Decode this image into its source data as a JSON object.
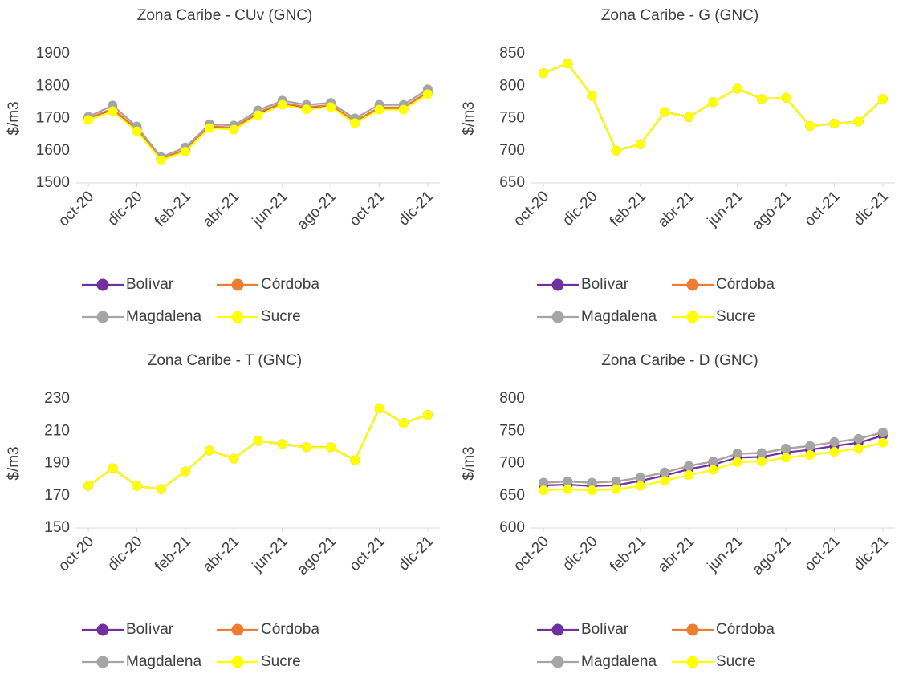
{
  "chart_data": [
    {
      "type": "line",
      "title": "Zona Caribe - CUv (GNC)",
      "y_label": "$/m3",
      "categories": [
        "oct-20",
        null,
        "dic-20",
        null,
        "feb-21",
        null,
        "abr-21",
        null,
        "jun-21",
        null,
        "ago-21",
        null,
        "oct-21",
        null,
        "dic-21"
      ],
      "series": [
        {
          "name": "Bolívar",
          "color": "#7030a0",
          "values": [
            1698,
            1726,
            1664,
            1572,
            1600,
            1673,
            1668,
            1714,
            1745,
            1731,
            1738,
            1688,
            1730,
            1730,
            1778
          ]
        },
        {
          "name": "Córdoba",
          "color": "#ed7d31",
          "values": [
            1700,
            1730,
            1668,
            1575,
            1603,
            1676,
            1671,
            1718,
            1748,
            1735,
            1741,
            1692,
            1734,
            1734,
            1782
          ]
        },
        {
          "name": "Magdalena",
          "color": "#a5a5a5",
          "values": [
            1705,
            1740,
            1675,
            1580,
            1610,
            1682,
            1678,
            1725,
            1755,
            1742,
            1748,
            1700,
            1742,
            1742,
            1790
          ]
        },
        {
          "name": "Sucre",
          "color": "#ffff00",
          "values": [
            1695,
            1722,
            1660,
            1570,
            1597,
            1670,
            1665,
            1710,
            1742,
            1728,
            1735,
            1685,
            1727,
            1727,
            1775
          ]
        }
      ],
      "ylim": [
        1500,
        1900
      ],
      "yticks": [
        1500,
        1600,
        1700,
        1800,
        1900
      ]
    },
    {
      "type": "line",
      "title": "Zona Caribe - G (GNC)",
      "y_label": "$/m3",
      "categories": [
        "oct-20",
        null,
        "dic-20",
        null,
        "feb-21",
        null,
        "abr-21",
        null,
        "jun-21",
        null,
        "ago-21",
        null,
        "oct-21",
        null,
        "dic-21"
      ],
      "series": [
        {
          "name": "Bolívar",
          "color": "#7030a0",
          "values": [
            820,
            835,
            785,
            700,
            710,
            760,
            752,
            775,
            796,
            780,
            782,
            738,
            742,
            745,
            780
          ]
        },
        {
          "name": "Córdoba",
          "color": "#ed7d31",
          "values": [
            820,
            835,
            785,
            700,
            710,
            760,
            752,
            775,
            796,
            780,
            782,
            738,
            742,
            745,
            780
          ]
        },
        {
          "name": "Magdalena",
          "color": "#a5a5a5",
          "values": [
            820,
            835,
            785,
            700,
            710,
            760,
            752,
            775,
            796,
            780,
            782,
            738,
            742,
            745,
            780
          ]
        },
        {
          "name": "Sucre",
          "color": "#ffff00",
          "values": [
            820,
            835,
            785,
            700,
            710,
            760,
            752,
            775,
            796,
            780,
            782,
            738,
            742,
            745,
            780
          ]
        }
      ],
      "ylim": [
        650,
        850
      ],
      "yticks": [
        650,
        700,
        750,
        800,
        850
      ]
    },
    {
      "type": "line",
      "title": "Zona Caribe - T (GNC)",
      "y_label": "$/m3",
      "categories": [
        "oct-20",
        null,
        "dic-20",
        null,
        "feb-21",
        null,
        "abr-21",
        null,
        "jun-21",
        null,
        "ago-21",
        null,
        "oct-21",
        null,
        "dic-21"
      ],
      "series": [
        {
          "name": "Bolívar",
          "color": "#7030a0",
          "values": [
            176,
            187,
            176,
            174,
            185,
            198,
            193,
            204,
            202,
            200,
            200,
            192,
            224,
            215,
            220
          ]
        },
        {
          "name": "Córdoba",
          "color": "#ed7d31",
          "values": [
            176,
            187,
            176,
            174,
            185,
            198,
            193,
            204,
            202,
            200,
            200,
            192,
            224,
            215,
            220
          ]
        },
        {
          "name": "Magdalena",
          "color": "#a5a5a5",
          "values": [
            176,
            187,
            176,
            174,
            185,
            198,
            193,
            204,
            202,
            200,
            200,
            192,
            224,
            215,
            220
          ]
        },
        {
          "name": "Sucre",
          "color": "#ffff00",
          "values": [
            176,
            187,
            176,
            174,
            185,
            198,
            193,
            204,
            202,
            200,
            200,
            192,
            224,
            215,
            220
          ]
        }
      ],
      "ylim": [
        150,
        230
      ],
      "yticks": [
        150,
        170,
        190,
        210,
        230
      ]
    },
    {
      "type": "line",
      "title": "Zona Caribe - D (GNC)",
      "y_label": "$/m3",
      "categories": [
        "oct-20",
        null,
        "dic-20",
        null,
        "feb-21",
        null,
        "abr-21",
        null,
        "jun-21",
        null,
        "ago-21",
        null,
        "oct-21",
        null,
        "dic-21"
      ],
      "series": [
        {
          "name": "Bolívar",
          "color": "#7030a0",
          "values": [
            666,
            667,
            665,
            666,
            673,
            681,
            691,
            698,
            709,
            710,
            717,
            721,
            727,
            732,
            743
          ]
        },
        {
          "name": "Córdoba",
          "color": "#ed7d31",
          "values": [
            670,
            672,
            670,
            672,
            678,
            686,
            696,
            703,
            715,
            716,
            723,
            727,
            733,
            738,
            748
          ]
        },
        {
          "name": "Magdalena",
          "color": "#a5a5a5",
          "values": [
            670,
            672,
            670,
            672,
            678,
            686,
            696,
            703,
            715,
            716,
            723,
            727,
            733,
            738,
            748
          ]
        },
        {
          "name": "Sucre",
          "color": "#ffff00",
          "values": [
            658,
            660,
            658,
            660,
            665,
            673,
            682,
            690,
            702,
            703,
            709,
            713,
            718,
            723,
            732
          ]
        }
      ],
      "ylim": [
        600,
        800
      ],
      "yticks": [
        600,
        650,
        700,
        750,
        800
      ]
    }
  ]
}
